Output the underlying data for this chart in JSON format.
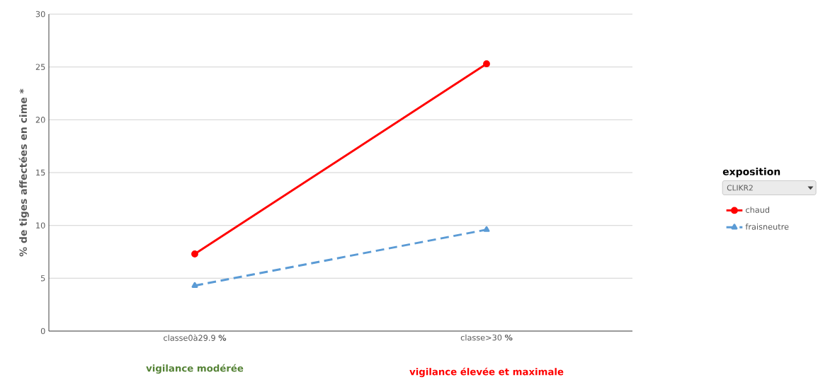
{
  "chart_data": {
    "type": "line",
    "ylabel": "% de tiges affectées en cime *",
    "legend_title": "exposition",
    "categories": [
      "classe0à29.9 **%**",
      "classe>30 **%**"
    ],
    "series": [
      {
        "name": "chaud",
        "color": "#ff0000",
        "values": [
          7.3,
          25.3
        ],
        "marker": "circle",
        "line_style": "solid"
      },
      {
        "name": "fraisneutre",
        "color": "#5b9bd5",
        "values": [
          4.3,
          9.6
        ],
        "marker": "triangle",
        "line_style": "dashed"
      }
    ],
    "ylim": [
      0,
      30
    ],
    "yticks": [
      0,
      5,
      10,
      15,
      20,
      25,
      30
    ],
    "grid": "y",
    "legend": "right",
    "annotations": [
      "CLIKR2",
      "vigilance modérée",
      "vigilance élevée et maximale"
    ]
  }
}
